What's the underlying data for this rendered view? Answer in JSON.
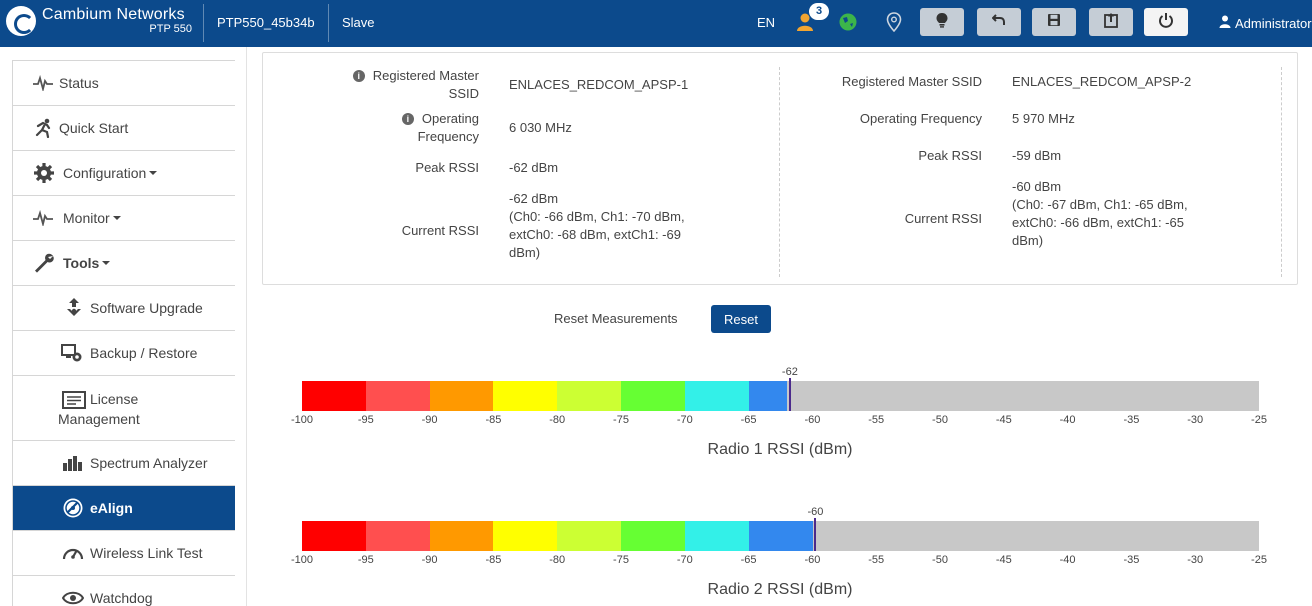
{
  "header": {
    "brand": "Cambium Networks",
    "product": "PTP 550",
    "device_name": "PTP550_45b34b",
    "role": "Slave",
    "language": "EN",
    "notification_count": "3",
    "user": "Administrator",
    "colors": {
      "bar": "#0c4a8c",
      "button": "#c5cdd6"
    }
  },
  "sidebar": {
    "items": [
      {
        "label": "Status",
        "icon": "pulse-icon"
      },
      {
        "label": "Quick Start",
        "icon": "runner-icon"
      },
      {
        "label": "Configuration",
        "icon": "gear-icon"
      },
      {
        "label": "Monitor",
        "icon": "pulse-icon"
      },
      {
        "label": "Tools",
        "icon": "wrench-icon"
      },
      {
        "label": "Software Upgrade",
        "icon": "upgrade-icon"
      },
      {
        "label": "Backup / Restore",
        "icon": "backup-icon"
      },
      {
        "label": "License",
        "label2": "Management",
        "icon": "license-icon"
      },
      {
        "label": "Spectrum Analyzer",
        "icon": "bar-chart-icon"
      },
      {
        "label": "eAlign",
        "icon": "ealign-icon"
      },
      {
        "label": "Wireless Link Test",
        "icon": "gauge-icon"
      },
      {
        "label": "Watchdog",
        "icon": "eye-icon"
      }
    ]
  },
  "radio1": {
    "ssid_label_1": "Registered Master",
    "ssid_label_2": "SSID",
    "ssid": "ENLACES_REDCOM_APSP-1",
    "freq_label_1": "Operating",
    "freq_label_2": "Frequency",
    "frequency": "6 030 MHz",
    "peak_label": "Peak RSSI",
    "peak_rssi": "-62 dBm",
    "current_label": "Current RSSI",
    "current_lines": [
      "-62 dBm",
      "(Ch0: -66 dBm, Ch1: -70 dBm,",
      "extCh0: -68 dBm, extCh1: -69",
      "dBm)"
    ]
  },
  "radio2": {
    "ssid_label": "Registered Master SSID",
    "ssid": "ENLACES_REDCOM_APSP-2",
    "freq_label": "Operating Frequency",
    "frequency": "5 970 MHz",
    "peak_label": "Peak RSSI",
    "peak_rssi": "-59 dBm",
    "current_label": "Current RSSI",
    "current_lines": [
      "-60 dBm",
      "(Ch0: -67 dBm, Ch1: -65 dBm,",
      "extCh0: -66 dBm, extCh1: -65",
      "dBm)"
    ]
  },
  "reset": {
    "label": "Reset Measurements",
    "button": "Reset"
  },
  "meters": {
    "min": -100,
    "max": -25,
    "ticks": [
      "-100",
      "-95",
      "-90",
      "-85",
      "-80",
      "-75",
      "-70",
      "-65",
      "-60",
      "-55",
      "-50",
      "-45",
      "-40",
      "-35",
      "-30",
      "-25"
    ],
    "segment_colors": [
      "#ff0000",
      "#ff4f4f",
      "#ff9900",
      "#ffff00",
      "#ccff33",
      "#66ff33",
      "#33f0e8",
      "#3388ee"
    ],
    "empty_color": "#c8c8c8",
    "marker_color": "#4b2a8c",
    "radio1": {
      "title": "Radio 1 RSSI (dBm)",
      "value": -62,
      "marker_label": "-62"
    },
    "radio2": {
      "title": "Radio 2 RSSI (dBm)",
      "value": -60,
      "marker_label": "-60"
    }
  }
}
